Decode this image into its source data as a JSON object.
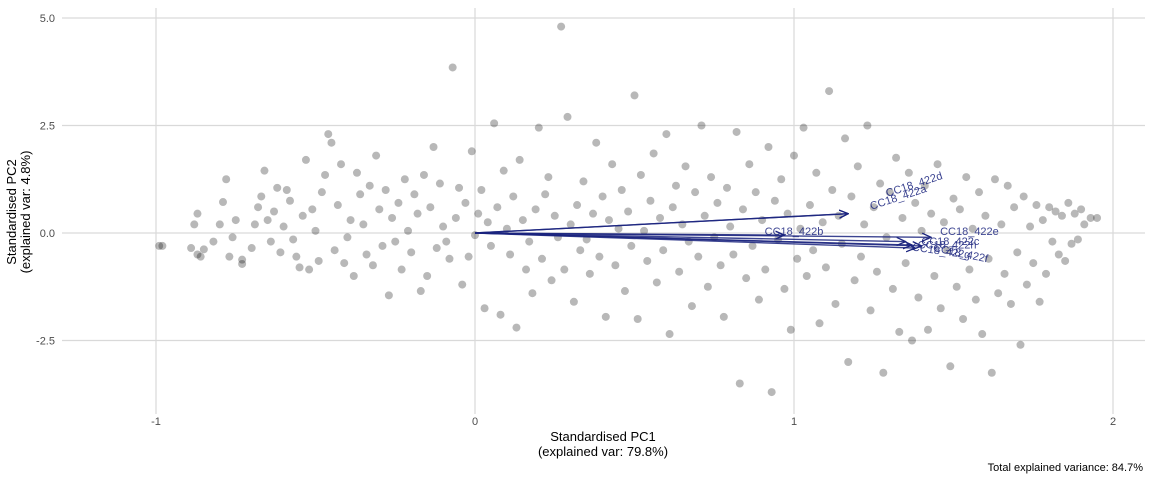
{
  "chart_data": {
    "type": "scatter",
    "subtype": "pca-biplot",
    "xlabel_line1": "Standardised PC1",
    "xlabel_line2": "(explained var: 79.8%)",
    "ylabel_line1": "Standardised PC2",
    "ylabel_line2": "(explained var:  4.8%)",
    "caption": "Total explained variance: 84.7%",
    "xlim": [
      -1.0,
      2.1
    ],
    "ylim": [
      -3.9,
      5.0
    ],
    "xticks": [
      -1,
      0,
      1,
      2
    ],
    "xtick_labels": [
      "-1",
      "0",
      "1",
      "2"
    ],
    "yticks": [
      -2.5,
      0,
      2.5,
      5.0
    ],
    "ytick_labels": [
      "-2.5",
      "0.0",
      "2.5",
      "5.0"
    ],
    "grid": true,
    "point_color": "#000000",
    "point_alpha": 0.28,
    "arrow_color": "#1a237e",
    "points": [
      [
        -0.99,
        -0.3
      ],
      [
        -0.98,
        -0.3
      ],
      [
        -0.89,
        -0.35
      ],
      [
        -0.87,
        -0.5
      ],
      [
        -0.86,
        -0.55
      ],
      [
        -0.85,
        -0.38
      ],
      [
        -0.88,
        0.2
      ],
      [
        -0.87,
        0.45
      ],
      [
        -0.82,
        -0.2
      ],
      [
        -0.8,
        0.2
      ],
      [
        -0.79,
        0.72
      ],
      [
        -0.78,
        1.25
      ],
      [
        -0.77,
        -0.55
      ],
      [
        -0.76,
        -0.1
      ],
      [
        -0.75,
        0.3
      ],
      [
        -0.73,
        -0.62
      ],
      [
        -0.73,
        -0.72
      ],
      [
        -0.7,
        -0.35
      ],
      [
        -0.69,
        0.2
      ],
      [
        -0.68,
        0.6
      ],
      [
        -0.67,
        0.85
      ],
      [
        -0.66,
        1.45
      ],
      [
        -0.65,
        0.3
      ],
      [
        -0.64,
        -0.2
      ],
      [
        -0.63,
        0.5
      ],
      [
        -0.62,
        1.05
      ],
      [
        -0.61,
        -0.45
      ],
      [
        -0.6,
        0.15
      ],
      [
        -0.59,
        1.0
      ],
      [
        -0.58,
        0.75
      ],
      [
        -0.57,
        -0.15
      ],
      [
        -0.56,
        -0.55
      ],
      [
        -0.55,
        -0.8
      ],
      [
        -0.54,
        0.4
      ],
      [
        -0.53,
        1.7
      ],
      [
        -0.52,
        -0.85
      ],
      [
        -0.51,
        0.55
      ],
      [
        -0.5,
        0.05
      ],
      [
        -0.49,
        -0.65
      ],
      [
        -0.48,
        0.95
      ],
      [
        -0.47,
        1.35
      ],
      [
        -0.46,
        2.3
      ],
      [
        -0.45,
        2.1
      ],
      [
        -0.44,
        -0.4
      ],
      [
        -0.43,
        0.65
      ],
      [
        -0.42,
        1.6
      ],
      [
        -0.41,
        -0.7
      ],
      [
        -0.4,
        -0.1
      ],
      [
        -0.39,
        0.3
      ],
      [
        -0.38,
        -1.0
      ],
      [
        -0.37,
        1.4
      ],
      [
        -0.36,
        0.9
      ],
      [
        -0.35,
        0.2
      ],
      [
        -0.34,
        -0.5
      ],
      [
        -0.33,
        1.1
      ],
      [
        -0.32,
        -0.75
      ],
      [
        -0.31,
        1.8
      ],
      [
        -0.3,
        0.55
      ],
      [
        -0.29,
        -0.3
      ],
      [
        -0.28,
        1.0
      ],
      [
        -0.27,
        -1.45
      ],
      [
        -0.26,
        0.35
      ],
      [
        -0.25,
        -0.2
      ],
      [
        -0.24,
        0.7
      ],
      [
        -0.23,
        -0.85
      ],
      [
        -0.22,
        1.25
      ],
      [
        -0.21,
        0.05
      ],
      [
        -0.2,
        -0.45
      ],
      [
        -0.19,
        0.9
      ],
      [
        -0.18,
        0.45
      ],
      [
        -0.17,
        -1.35
      ],
      [
        -0.16,
        1.35
      ],
      [
        -0.15,
        -1.0
      ],
      [
        -0.14,
        0.6
      ],
      [
        -0.13,
        2.0
      ],
      [
        -0.12,
        -0.35
      ],
      [
        -0.11,
        1.15
      ],
      [
        -0.1,
        0.15
      ],
      [
        -0.09,
        -0.2
      ],
      [
        -0.08,
        -0.6
      ],
      [
        -0.07,
        3.85
      ],
      [
        -0.06,
        0.35
      ],
      [
        -0.05,
        1.05
      ],
      [
        -0.04,
        -1.2
      ],
      [
        -0.03,
        0.7
      ],
      [
        -0.02,
        -0.55
      ],
      [
        -0.01,
        1.9
      ],
      [
        0.0,
        -0.05
      ],
      [
        0.01,
        0.45
      ],
      [
        0.02,
        1.0
      ],
      [
        0.03,
        -1.75
      ],
      [
        0.04,
        0.25
      ],
      [
        0.05,
        -0.3
      ],
      [
        0.06,
        2.55
      ],
      [
        0.07,
        0.6
      ],
      [
        0.08,
        -1.9
      ],
      [
        0.09,
        1.45
      ],
      [
        0.1,
        0.1
      ],
      [
        0.11,
        -0.5
      ],
      [
        0.12,
        0.85
      ],
      [
        0.13,
        -2.2
      ],
      [
        0.14,
        1.7
      ],
      [
        0.15,
        0.3
      ],
      [
        0.16,
        -0.85
      ],
      [
        0.17,
        -0.2
      ],
      [
        0.18,
        -1.4
      ],
      [
        0.19,
        0.55
      ],
      [
        0.2,
        2.45
      ],
      [
        0.21,
        -0.6
      ],
      [
        0.22,
        0.9
      ],
      [
        0.23,
        1.3
      ],
      [
        0.24,
        -1.1
      ],
      [
        0.25,
        0.4
      ],
      [
        0.26,
        -0.1
      ],
      [
        0.27,
        4.8
      ],
      [
        0.28,
        -0.85
      ],
      [
        0.29,
        2.7
      ],
      [
        0.3,
        0.2
      ],
      [
        0.31,
        -1.6
      ],
      [
        0.32,
        0.65
      ],
      [
        0.33,
        -0.4
      ],
      [
        0.34,
        1.2
      ],
      [
        0.35,
        -0.15
      ],
      [
        0.36,
        -0.95
      ],
      [
        0.37,
        0.45
      ],
      [
        0.38,
        2.1
      ],
      [
        0.39,
        -0.55
      ],
      [
        0.4,
        0.85
      ],
      [
        0.41,
        -1.95
      ],
      [
        0.42,
        0.3
      ],
      [
        0.43,
        1.6
      ],
      [
        0.44,
        -0.75
      ],
      [
        0.45,
        0.1
      ],
      [
        0.46,
        1.0
      ],
      [
        0.47,
        -1.35
      ],
      [
        0.48,
        0.5
      ],
      [
        0.49,
        -0.3
      ],
      [
        0.5,
        3.2
      ],
      [
        0.51,
        -2.0
      ],
      [
        0.52,
        1.35
      ],
      [
        0.53,
        0.05
      ],
      [
        0.54,
        -0.65
      ],
      [
        0.55,
        0.75
      ],
      [
        0.56,
        1.85
      ],
      [
        0.57,
        -1.15
      ],
      [
        0.58,
        0.35
      ],
      [
        0.59,
        -0.4
      ],
      [
        0.6,
        2.3
      ],
      [
        0.61,
        -2.35
      ],
      [
        0.62,
        0.6
      ],
      [
        0.63,
        1.1
      ],
      [
        0.64,
        -0.9
      ],
      [
        0.65,
        0.2
      ],
      [
        0.66,
        1.55
      ],
      [
        0.67,
        -0.2
      ],
      [
        0.68,
        -1.7
      ],
      [
        0.69,
        0.95
      ],
      [
        0.7,
        -0.55
      ],
      [
        0.71,
        2.5
      ],
      [
        0.72,
        0.4
      ],
      [
        0.73,
        -1.25
      ],
      [
        0.74,
        1.3
      ],
      [
        0.75,
        -0.1
      ],
      [
        0.76,
        0.7
      ],
      [
        0.77,
        -0.75
      ],
      [
        0.78,
        -1.95
      ],
      [
        0.79,
        1.05
      ],
      [
        0.8,
        0.15
      ],
      [
        0.81,
        -0.5
      ],
      [
        0.82,
        2.35
      ],
      [
        0.83,
        -3.5
      ],
      [
        0.84,
        0.55
      ],
      [
        0.85,
        -1.05
      ],
      [
        0.86,
        1.6
      ],
      [
        0.87,
        -0.3
      ],
      [
        0.88,
        0.95
      ],
      [
        0.89,
        -1.55
      ],
      [
        0.9,
        0.3
      ],
      [
        0.91,
        -0.85
      ],
      [
        0.92,
        2.0
      ],
      [
        0.93,
        -3.7
      ],
      [
        0.94,
        0.75
      ],
      [
        0.95,
        -0.15
      ],
      [
        0.96,
        1.25
      ],
      [
        0.97,
        -1.3
      ],
      [
        0.98,
        0.45
      ],
      [
        0.99,
        -2.25
      ],
      [
        1.0,
        1.8
      ],
      [
        1.01,
        -0.6
      ],
      [
        1.02,
        0.1
      ],
      [
        1.03,
        2.45
      ],
      [
        1.04,
        -1.0
      ],
      [
        1.05,
        0.65
      ],
      [
        1.06,
        -0.4
      ],
      [
        1.07,
        1.4
      ],
      [
        1.08,
        -2.1
      ],
      [
        1.09,
        0.25
      ],
      [
        1.1,
        -0.8
      ],
      [
        1.11,
        3.3
      ],
      [
        1.12,
        1.0
      ],
      [
        1.13,
        -1.65
      ],
      [
        1.14,
        0.4
      ],
      [
        1.15,
        -0.25
      ],
      [
        1.16,
        2.2
      ],
      [
        1.17,
        -3.0
      ],
      [
        1.18,
        0.85
      ],
      [
        1.19,
        -1.1
      ],
      [
        1.2,
        1.55
      ],
      [
        1.21,
        -0.55
      ],
      [
        1.22,
        0.2
      ],
      [
        1.23,
        2.5
      ],
      [
        1.24,
        -1.8
      ],
      [
        1.25,
        0.6
      ],
      [
        1.26,
        -0.9
      ],
      [
        1.27,
        1.15
      ],
      [
        1.28,
        -3.25
      ],
      [
        1.29,
        -0.1
      ],
      [
        1.3,
        0.95
      ],
      [
        1.31,
        -1.3
      ],
      [
        1.32,
        1.75
      ],
      [
        1.33,
        -2.3
      ],
      [
        1.34,
        0.35
      ],
      [
        1.35,
        -0.7
      ],
      [
        1.36,
        1.4
      ],
      [
        1.37,
        -2.5
      ],
      [
        1.38,
        0.7
      ],
      [
        1.39,
        -1.5
      ],
      [
        1.4,
        0.05
      ],
      [
        1.41,
        1.1
      ],
      [
        1.42,
        -2.25
      ],
      [
        1.43,
        0.45
      ],
      [
        1.44,
        -1.0
      ],
      [
        1.45,
        1.6
      ],
      [
        1.46,
        -1.75
      ],
      [
        1.47,
        0.25
      ],
      [
        1.48,
        -0.4
      ],
      [
        1.49,
        -3.1
      ],
      [
        1.5,
        0.8
      ],
      [
        1.51,
        -1.25
      ],
      [
        1.52,
        0.55
      ],
      [
        1.53,
        -2.0
      ],
      [
        1.54,
        1.3
      ],
      [
        1.55,
        -0.85
      ],
      [
        1.56,
        0.1
      ],
      [
        1.57,
        -1.55
      ],
      [
        1.58,
        0.95
      ],
      [
        1.59,
        -2.35
      ],
      [
        1.6,
        0.4
      ],
      [
        1.61,
        -0.6
      ],
      [
        1.62,
        -3.25
      ],
      [
        1.63,
        1.25
      ],
      [
        1.64,
        -1.4
      ],
      [
        1.65,
        0.2
      ],
      [
        1.66,
        -0.95
      ],
      [
        1.67,
        1.1
      ],
      [
        1.68,
        -1.65
      ],
      [
        1.69,
        0.6
      ],
      [
        1.7,
        -0.45
      ],
      [
        1.71,
        -2.6
      ],
      [
        1.72,
        0.85
      ],
      [
        1.73,
        -1.2
      ],
      [
        1.74,
        0.15
      ],
      [
        1.75,
        -0.7
      ],
      [
        1.76,
        0.65
      ],
      [
        1.77,
        -1.6
      ],
      [
        1.78,
        0.3
      ],
      [
        1.79,
        -0.95
      ],
      [
        1.8,
        0.6
      ],
      [
        1.81,
        -0.2
      ],
      [
        1.82,
        0.5
      ],
      [
        1.83,
        -0.5
      ],
      [
        1.84,
        0.4
      ],
      [
        1.85,
        -0.65
      ],
      [
        1.86,
        0.7
      ],
      [
        1.87,
        -0.25
      ],
      [
        1.88,
        0.45
      ],
      [
        1.89,
        -0.15
      ],
      [
        1.9,
        0.55
      ],
      [
        1.91,
        0.2
      ],
      [
        1.93,
        0.35
      ],
      [
        1.95,
        0.35
      ]
    ],
    "arrows": [
      {
        "name": "CC18_422d",
        "x": 1.17,
        "y": 0.45
      },
      {
        "name": "CC18_422a",
        "x": 1.17,
        "y": 0.45
      },
      {
        "name": "CC18_422b",
        "x": 0.97,
        "y": -0.05
      },
      {
        "name": "CC18_422e",
        "x": 1.43,
        "y": -0.1
      },
      {
        "name": "CC18_422c",
        "x": 1.35,
        "y": -0.2
      },
      {
        "name": "CC18_422g",
        "x": 1.37,
        "y": -0.28
      },
      {
        "name": "CC18_422f",
        "x": 1.38,
        "y": -0.35
      },
      {
        "name": "CC18_422h",
        "x": 1.4,
        "y": -0.3
      }
    ],
    "arrow_labels": [
      {
        "text": "CC18_422d",
        "x": 1.38,
        "y": 1.05,
        "angle": -18
      },
      {
        "text": "CC18_422a",
        "x": 1.33,
        "y": 0.75,
        "angle": -18
      },
      {
        "text": "CC18_422b",
        "x": 1.0,
        "y": -0.05,
        "angle": 0
      },
      {
        "text": "CC18_422e",
        "x": 1.55,
        "y": -0.05,
        "angle": 0
      },
      {
        "text": "CC18_422c",
        "x": 1.49,
        "y": -0.28,
        "angle": 0
      },
      {
        "text": "CC18_422h",
        "x": 1.48,
        "y": -0.36,
        "angle": 0
      },
      {
        "text": "CC18_422g",
        "x": 1.46,
        "y": -0.5,
        "angle": 8
      },
      {
        "text": "CC18_422f",
        "x": 1.52,
        "y": -0.55,
        "angle": 12
      }
    ]
  }
}
